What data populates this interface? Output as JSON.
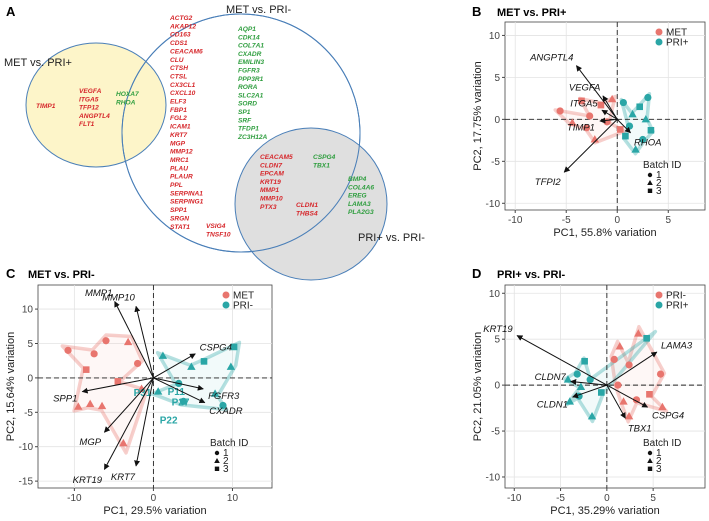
{
  "colors": {
    "met": "#e8756e",
    "pri_plus": "#2aa6a6",
    "pri_minus": "#e8756e",
    "venn_red": "#d6262a",
    "venn_green": "#2f9e3f",
    "venn_yellow": "#fdf5c9",
    "venn_gray": "#d9d9d9",
    "venn_blue": "#4a7fb8"
  },
  "panel_labels": {
    "a": "A",
    "b": "B",
    "c": "C",
    "d": "D"
  },
  "venn": {
    "set_labels": {
      "met_vs_pri": "MET vs. PRI-",
      "met_vs_priplus": "MET vs. PRI+",
      "priplus_vs_pri": "PRI+ vs. PRI-"
    },
    "only_met_priplus_red": [
      "TIMP1"
    ],
    "met_priplus_overlap_red": [
      "VEGFA",
      "ITGA5",
      "TFP12",
      "ANGPTL4",
      "FLT1"
    ],
    "met_priplus_overlap_green": [
      "HOXA7",
      "RHOA"
    ],
    "met_pri_only_red": [
      "ACTG2",
      "AKAP12",
      "CD163",
      "CDS1",
      "CEACAM6",
      "CLU",
      "CTSH",
      "CTSL",
      "CX3CL1",
      "CXCL10",
      "ELF3",
      "FBP1",
      "FGL2",
      "ICAM1",
      "KRT7",
      "MGP",
      "MMP12",
      "MRC1",
      "PLAU",
      "PLAUR",
      "PPL",
      "SERPINA1",
      "SERPING1",
      "SPP1",
      "SRGN",
      "STAT1"
    ],
    "met_pri_only_red_tail": [
      "VSIG4",
      "TNSF10"
    ],
    "met_pri_only_green": [
      "AQP1",
      "CDK14",
      "COL7A1",
      "CXADR",
      "EMILIN3",
      "FGFR3",
      "PPP3R1",
      "RORA",
      "SLC2A1",
      "SORD",
      "SP1",
      "SRF",
      "TFDP1",
      "ZC3H12A"
    ],
    "met_pri_priplus_red": [
      "CEACAM5",
      "CLDN7",
      "EPCAM",
      "KRT19",
      "MMP1",
      "MMP10",
      "PTX3"
    ],
    "met_pri_priplus_green": [
      "CSPG4",
      "TBX1"
    ],
    "priplus_pri_only_red": [
      "CLDN1",
      "THBS4"
    ],
    "priplus_pri_only_green": [
      "BMP4",
      "COL4A6",
      "EREG",
      "LAMA3",
      "PLA2G3"
    ]
  },
  "chart_data": [
    {
      "type": "scatter",
      "panel": "B",
      "title": "MET vs. PRI+",
      "xlabel": "PC1, 55.8% variation",
      "ylabel": "PC2, 17.75% variation",
      "xlim": [
        -11,
        8.6
      ],
      "ylim": [
        -10.8,
        11.6
      ],
      "xticks": [
        -10,
        -5,
        0,
        5
      ],
      "yticks": [
        -10,
        -5,
        0,
        5,
        10
      ],
      "groups": [
        {
          "name": "MET",
          "color": "#e8756e"
        },
        {
          "name": "PRI+",
          "color": "#2aa6a6"
        }
      ],
      "batch_title": "Batch ID",
      "batches": [
        "1",
        "2",
        "3"
      ],
      "points": [
        {
          "x": -5.6,
          "y": 1.0,
          "g": 0,
          "b": 0
        },
        {
          "x": -4.4,
          "y": -0.4,
          "g": 0,
          "b": 1
        },
        {
          "x": -3.5,
          "y": 2.2,
          "g": 0,
          "b": 2
        },
        {
          "x": -2.7,
          "y": 0.4,
          "g": 0,
          "b": 0
        },
        {
          "x": -2.2,
          "y": -2.4,
          "g": 0,
          "b": 1
        },
        {
          "x": -1.6,
          "y": 1.7,
          "g": 0,
          "b": 2
        },
        {
          "x": -1.0,
          "y": -0.3,
          "g": 0,
          "b": 0
        },
        {
          "x": -0.5,
          "y": 2.4,
          "g": 0,
          "b": 1
        },
        {
          "x": 0.3,
          "y": -1.2,
          "g": 0,
          "b": 2
        },
        {
          "x": -3.0,
          "y": -1.0,
          "g": 0,
          "b": 0
        },
        {
          "x": 0.6,
          "y": 2.0,
          "g": 1,
          "b": 0
        },
        {
          "x": 1.5,
          "y": 0.6,
          "g": 1,
          "b": 1
        },
        {
          "x": 2.2,
          "y": 1.5,
          "g": 1,
          "b": 2
        },
        {
          "x": 1.2,
          "y": -0.8,
          "g": 1,
          "b": 0
        },
        {
          "x": 2.8,
          "y": 0.0,
          "g": 1,
          "b": 1
        },
        {
          "x": 3.3,
          "y": -1.3,
          "g": 1,
          "b": 2
        },
        {
          "x": 1.8,
          "y": -3.6,
          "g": 1,
          "b": 1
        },
        {
          "x": 3.0,
          "y": 2.6,
          "g": 1,
          "b": 0
        },
        {
          "x": 0.8,
          "y": -2.0,
          "g": 1,
          "b": 2
        },
        {
          "x": 2.5,
          "y": -2.4,
          "g": 1,
          "b": 0
        }
      ],
      "vectors": [
        {
          "name": "ANGPTL4",
          "x": -4.0,
          "y": 6.4
        },
        {
          "name": "VEGFA",
          "x": -1.4,
          "y": 2.8
        },
        {
          "name": "ITGA5",
          "x": -1.5,
          "y": 1.1
        },
        {
          "name": "TIMP1",
          "x": -1.7,
          "y": -0.2
        },
        {
          "name": "RHOA",
          "x": 1.3,
          "y": -1.6
        },
        {
          "name": "TFPI2",
          "x": -5.2,
          "y": -6.3
        }
      ]
    },
    {
      "type": "scatter",
      "panel": "C",
      "title": "MET vs. PRI-",
      "xlabel": "PC1, 29.5% variation",
      "ylabel": "PC2, 15.64% variation",
      "xlim": [
        -14.6,
        15
      ],
      "ylim": [
        -16,
        13.5
      ],
      "xticks": [
        -10,
        0,
        10
      ],
      "yticks": [
        -15,
        -10,
        -5,
        0,
        5,
        10
      ],
      "groups": [
        {
          "name": "MET",
          "color": "#e8756e"
        },
        {
          "name": "PRI-",
          "color": "#2aa6a6"
        }
      ],
      "batch_title": "Batch ID",
      "batches": [
        "1",
        "2",
        "3"
      ],
      "points": [
        {
          "x": -10.8,
          "y": 4.0,
          "g": 0,
          "b": 0
        },
        {
          "x": -7.5,
          "y": 3.5,
          "g": 0,
          "b": 0
        },
        {
          "x": -8.5,
          "y": 1.2,
          "g": 0,
          "b": 2
        },
        {
          "x": -6.0,
          "y": 5.4,
          "g": 0,
          "b": 0
        },
        {
          "x": -4.5,
          "y": -0.5,
          "g": 0,
          "b": 2
        },
        {
          "x": -3.2,
          "y": 5.2,
          "g": 0,
          "b": 1
        },
        {
          "x": -2.0,
          "y": 2.1,
          "g": 0,
          "b": 0
        },
        {
          "x": -9.5,
          "y": -4.2,
          "g": 0,
          "b": 1
        },
        {
          "x": -8.0,
          "y": -3.8,
          "g": 0,
          "b": 1
        },
        {
          "x": -6.5,
          "y": -4.1,
          "g": 0,
          "b": 1
        },
        {
          "x": -3.8,
          "y": -9.5,
          "g": 0,
          "b": 1
        },
        {
          "x": -1.5,
          "y": -1.6,
          "g": 0,
          "b": 1
        },
        {
          "x": 1.2,
          "y": 3.2,
          "g": 1,
          "b": 1
        },
        {
          "x": 3.2,
          "y": -0.8,
          "g": 1,
          "b": 0
        },
        {
          "x": 4.8,
          "y": 1.6,
          "g": 1,
          "b": 1
        },
        {
          "x": 6.4,
          "y": 2.4,
          "g": 1,
          "b": 2
        },
        {
          "x": 7.8,
          "y": -2.3,
          "g": 1,
          "b": 1
        },
        {
          "x": 10.2,
          "y": 4.5,
          "g": 1,
          "b": 2
        },
        {
          "x": 8.8,
          "y": -4.0,
          "g": 1,
          "b": 0
        },
        {
          "x": 0.6,
          "y": -2.0,
          "g": 1,
          "b": 1
        },
        {
          "x": 3.8,
          "y": -3.4,
          "g": 1,
          "b": 0
        },
        {
          "x": 9.8,
          "y": 1.6,
          "g": 1,
          "b": 1
        }
      ],
      "sample_labels": [
        {
          "name": "P31",
          "x": -2.5,
          "y": -2.6
        },
        {
          "name": "P22",
          "x": 0.8,
          "y": -6.6
        },
        {
          "name": "P27",
          "x": 2.3,
          "y": -4.0
        },
        {
          "name": "P11",
          "x": 1.8,
          "y": -2.5
        }
      ],
      "vectors": [
        {
          "name": "MMP1",
          "x": -4.9,
          "y": 11.1
        },
        {
          "name": "MMP10",
          "x": -2.2,
          "y": 10.4
        },
        {
          "name": "CSPG4",
          "x": 5.3,
          "y": 3.5
        },
        {
          "name": "FGFR3",
          "x": 6.3,
          "y": -1.6
        },
        {
          "name": "CXADR",
          "x": 6.5,
          "y": -3.6
        },
        {
          "name": "SPP1",
          "x": -9.0,
          "y": -2.0
        },
        {
          "name": "MGP",
          "x": -6.2,
          "y": -7.9
        },
        {
          "name": "KRT7",
          "x": -2.2,
          "y": -12.8
        },
        {
          "name": "KRT19",
          "x": -6.2,
          "y": -13.3
        }
      ]
    },
    {
      "type": "scatter",
      "panel": "D",
      "title": "PRI+ vs. PRI-",
      "xlabel": "PC1, 35.29% variation",
      "ylabel": "PC2, 21.05% variation",
      "xlim": [
        -11,
        10.6
      ],
      "ylim": [
        -11.2,
        10.9
      ],
      "xticks": [
        -10,
        -5,
        0,
        5
      ],
      "yticks": [
        -10,
        -5,
        0,
        5,
        10
      ],
      "groups": [
        {
          "name": "PRI-",
          "color": "#e8756e"
        },
        {
          "name": "PRI+",
          "color": "#2aa6a6"
        }
      ],
      "batch_title": "Batch ID",
      "batches": [
        "1",
        "2",
        "3"
      ],
      "points": [
        {
          "x": 1.4,
          "y": 4.2,
          "g": 0,
          "b": 1
        },
        {
          "x": 3.4,
          "y": 5.6,
          "g": 0,
          "b": 1
        },
        {
          "x": 2.4,
          "y": 2.2,
          "g": 0,
          "b": 0
        },
        {
          "x": 1.2,
          "y": 0.0,
          "g": 0,
          "b": 0
        },
        {
          "x": 1.8,
          "y": -1.8,
          "g": 0,
          "b": 1
        },
        {
          "x": 3.2,
          "y": -1.6,
          "g": 0,
          "b": 0
        },
        {
          "x": 2.4,
          "y": -3.4,
          "g": 0,
          "b": 1
        },
        {
          "x": 4.6,
          "y": -1.0,
          "g": 0,
          "b": 2
        },
        {
          "x": 5.8,
          "y": 1.2,
          "g": 0,
          "b": 0
        },
        {
          "x": 6.0,
          "y": -2.4,
          "g": 0,
          "b": 1
        },
        {
          "x": 0.8,
          "y": 2.8,
          "g": 0,
          "b": 0
        },
        {
          "x": 4.3,
          "y": 5.1,
          "g": 1,
          "b": 2
        },
        {
          "x": -4.2,
          "y": 0.6,
          "g": 1,
          "b": 1
        },
        {
          "x": -4.0,
          "y": -1.8,
          "g": 1,
          "b": 1
        },
        {
          "x": -3.0,
          "y": -1.2,
          "g": 1,
          "b": 0
        },
        {
          "x": -1.8,
          "y": 0.6,
          "g": 1,
          "b": 0
        },
        {
          "x": -2.8,
          "y": -0.2,
          "g": 1,
          "b": 1
        },
        {
          "x": -0.6,
          "y": -0.8,
          "g": 1,
          "b": 2
        },
        {
          "x": -1.6,
          "y": -3.4,
          "g": 1,
          "b": 1
        },
        {
          "x": -2.4,
          "y": 2.6,
          "g": 1,
          "b": 2
        },
        {
          "x": -3.2,
          "y": 1.2,
          "g": 1,
          "b": 0
        }
      ],
      "vectors": [
        {
          "name": "KRT19",
          "x": -9.7,
          "y": 5.4
        },
        {
          "name": "LAMA3",
          "x": 5.4,
          "y": 3.6
        },
        {
          "name": "CLDN7",
          "x": -3.9,
          "y": 0.4
        },
        {
          "name": "CLDN1",
          "x": -3.7,
          "y": -1.3
        },
        {
          "name": "CSPG4",
          "x": 4.4,
          "y": -2.4
        },
        {
          "name": "TBX1",
          "x": 2.0,
          "y": -3.6
        }
      ]
    }
  ]
}
